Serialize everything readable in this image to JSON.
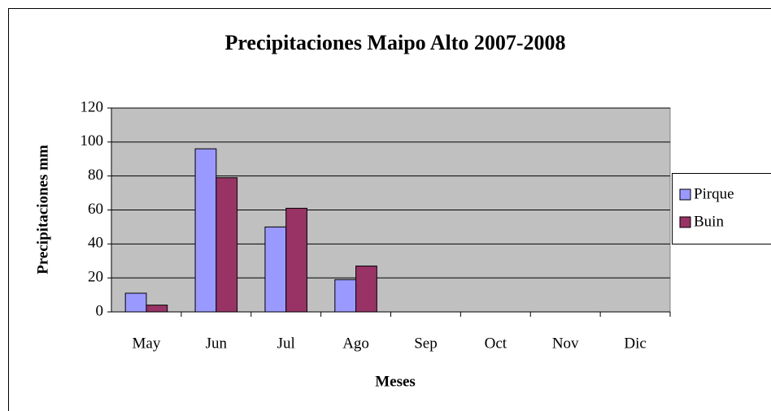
{
  "chart_data": {
    "type": "bar",
    "title": "Precipitaciones Maipo Alto 2007-2008",
    "x_label": "Meses",
    "y_label": "Precipitaciones mm",
    "categories": [
      "May",
      "Jun",
      "Jul",
      "Ago",
      "Sep",
      "Oct",
      "Nov",
      "Dic"
    ],
    "series": [
      {
        "name": "Pirque",
        "color": "#9999ff",
        "values": [
          11,
          96,
          50,
          19,
          null,
          null,
          null,
          null
        ]
      },
      {
        "name": "Buin",
        "color": "#993366",
        "values": [
          4,
          79,
          61,
          27,
          null,
          null,
          null,
          null
        ]
      }
    ],
    "ylim": [
      0,
      120
    ],
    "yticks": [
      0,
      20,
      40,
      60,
      80,
      100,
      120
    ],
    "grid": true,
    "legend": "right"
  }
}
